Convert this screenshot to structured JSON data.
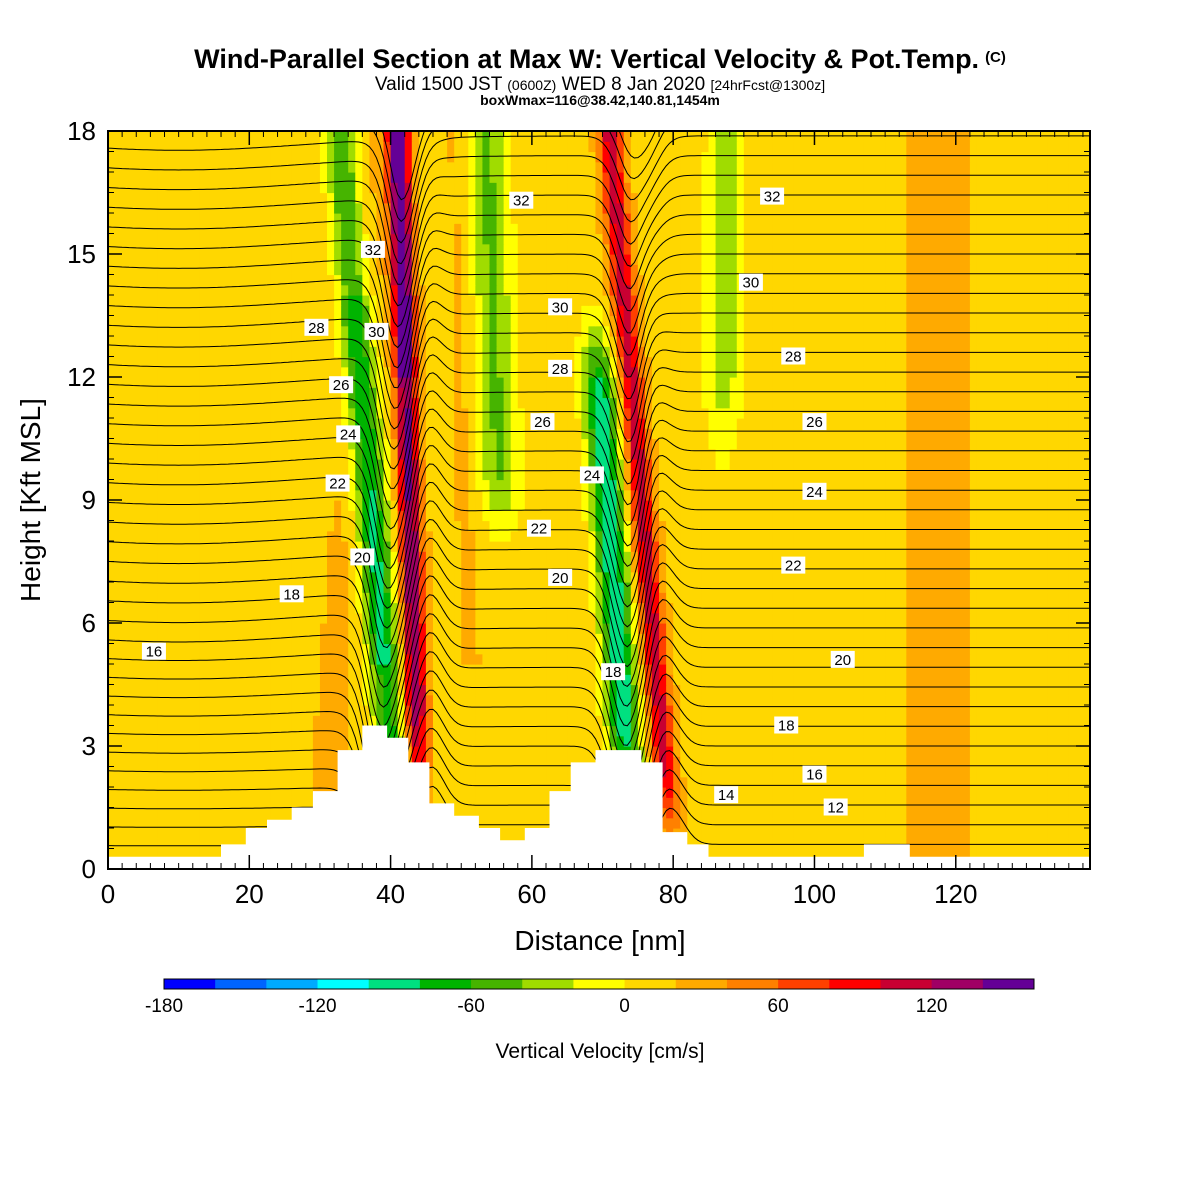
{
  "header": {
    "title_main": "Wind-Parallel Section at Max W: Vertical Velocity & Pot.Temp.",
    "title_copyright": "(C)",
    "valid_prefix": "Valid 1500 JST",
    "valid_utc": "(0600Z)",
    "valid_date": "WED 8 Jan 2020",
    "forecast": "[24hrFcst@1300z]",
    "box_info": "boxWmax=116@38.42,140.81,1454m"
  },
  "chart_data": {
    "type": "heatmap",
    "xlabel": "Distance [nm]",
    "ylabel": "Height [Kft MSL]",
    "xlim": [
      0,
      139
    ],
    "ylim": [
      0,
      18
    ],
    "x_ticks": [
      "0",
      "20",
      "40",
      "60",
      "80",
      "100",
      "120"
    ],
    "y_ticks": [
      "0",
      "3",
      "6",
      "9",
      "12",
      "15",
      "18"
    ],
    "colorbar": {
      "title": "Vertical Velocity [cm/s]",
      "range": [
        -180,
        160
      ],
      "step": 20,
      "tick_labels": [
        "-180",
        "-120",
        "-60",
        "0",
        "60",
        "120"
      ],
      "colors": [
        "#0000ff",
        "#0064ff",
        "#00aaff",
        "#00ffff",
        "#00e080",
        "#00b400",
        "#46b400",
        "#a0dc00",
        "#ffff00",
        "#ffd700",
        "#ffaa00",
        "#ff8000",
        "#ff4000",
        "#ff0000",
        "#c80032",
        "#a00064",
        "#640096"
      ]
    },
    "theta_contour_labels": [
      {
        "value": "16",
        "x": 6.5,
        "y": 5.3
      },
      {
        "value": "18",
        "x": 26,
        "y": 6.7
      },
      {
        "value": "20",
        "x": 36,
        "y": 7.6
      },
      {
        "value": "22",
        "x": 32.5,
        "y": 9.4
      },
      {
        "value": "24",
        "x": 34,
        "y": 10.6
      },
      {
        "value": "26",
        "x": 33,
        "y": 11.8
      },
      {
        "value": "28",
        "x": 29.5,
        "y": 13.2
      },
      {
        "value": "30",
        "x": 38,
        "y": 13.1
      },
      {
        "value": "32",
        "x": 37.5,
        "y": 15.1
      },
      {
        "value": "32",
        "x": 58.5,
        "y": 16.3
      },
      {
        "value": "30",
        "x": 64,
        "y": 13.7
      },
      {
        "value": "28",
        "x": 64,
        "y": 12.2
      },
      {
        "value": "26",
        "x": 61.5,
        "y": 10.9
      },
      {
        "value": "22",
        "x": 61,
        "y": 8.3
      },
      {
        "value": "20",
        "x": 64,
        "y": 7.1
      },
      {
        "value": "24",
        "x": 68.5,
        "y": 9.6
      },
      {
        "value": "18",
        "x": 71.5,
        "y": 4.8
      },
      {
        "value": "32",
        "x": 94,
        "y": 16.4
      },
      {
        "value": "30",
        "x": 91,
        "y": 14.3
      },
      {
        "value": "28",
        "x": 97,
        "y": 12.5
      },
      {
        "value": "26",
        "x": 100,
        "y": 10.9
      },
      {
        "value": "24",
        "x": 100,
        "y": 9.2
      },
      {
        "value": "22",
        "x": 97,
        "y": 7.4
      },
      {
        "value": "20",
        "x": 104,
        "y": 5.1
      },
      {
        "value": "18",
        "x": 96,
        "y": 3.5
      },
      {
        "value": "16",
        "x": 100,
        "y": 2.3
      },
      {
        "value": "14",
        "x": 87.5,
        "y": 1.8
      },
      {
        "value": "12",
        "x": 103,
        "y": 1.5
      }
    ],
    "terrain_height_kft": [
      [
        0,
        0.3
      ],
      [
        16,
        0.3
      ],
      [
        16,
        0.6
      ],
      [
        19.5,
        0.6
      ],
      [
        19.5,
        1.0
      ],
      [
        22.5,
        1.0
      ],
      [
        22.5,
        1.2
      ],
      [
        26,
        1.2
      ],
      [
        26,
        1.5
      ],
      [
        29,
        1.5
      ],
      [
        29,
        1.9
      ],
      [
        32.5,
        1.9
      ],
      [
        32.5,
        2.9
      ],
      [
        36,
        2.9
      ],
      [
        36,
        3.5
      ],
      [
        39.5,
        3.5
      ],
      [
        39.5,
        3.2
      ],
      [
        42.5,
        3.2
      ],
      [
        42.5,
        2.6
      ],
      [
        45.5,
        2.6
      ],
      [
        45.5,
        1.6
      ],
      [
        49,
        1.6
      ],
      [
        49,
        1.3
      ],
      [
        52.5,
        1.3
      ],
      [
        52.5,
        1.0
      ],
      [
        55.5,
        1.0
      ],
      [
        55.5,
        0.7
      ],
      [
        59,
        0.7
      ],
      [
        59,
        1.0
      ],
      [
        62.5,
        1.0
      ],
      [
        62.5,
        1.9
      ],
      [
        65.5,
        1.9
      ],
      [
        65.5,
        2.6
      ],
      [
        69,
        2.6
      ],
      [
        69,
        2.9
      ],
      [
        75.5,
        2.9
      ],
      [
        75.5,
        2.6
      ],
      [
        78.5,
        2.6
      ],
      [
        78.5,
        0.9
      ],
      [
        82,
        0.9
      ],
      [
        82,
        0.6
      ],
      [
        85,
        0.6
      ],
      [
        85,
        0.3
      ],
      [
        107,
        0.3
      ],
      [
        107,
        0.6
      ],
      [
        113.5,
        0.6
      ],
      [
        113.5,
        0.3
      ],
      [
        139,
        0.3
      ]
    ]
  }
}
